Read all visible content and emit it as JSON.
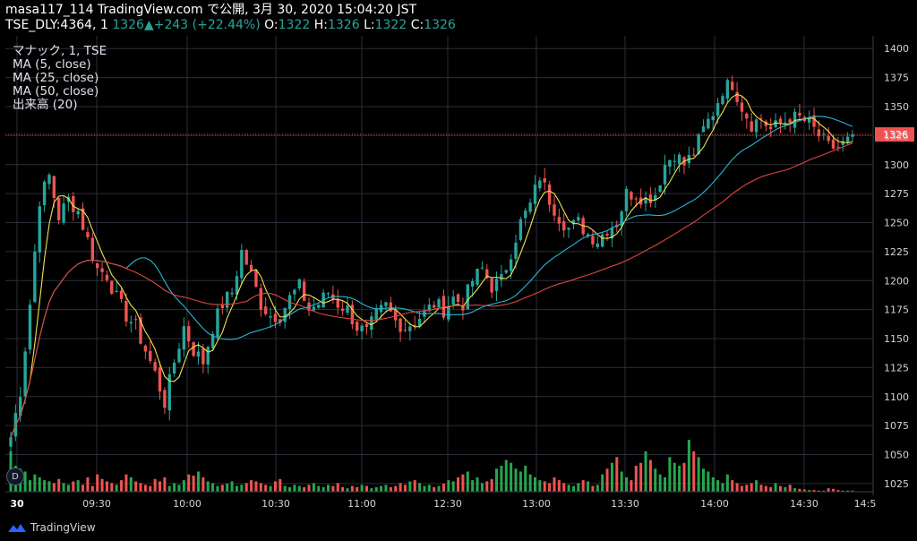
{
  "header": {
    "line1": "masa117_114 TradingView.com で公開, 3月 30, 2020 15:04:20 JST",
    "symbol_prefix": "TSE_DLY:4364, 1 ",
    "last": "1326",
    "arrow": "▲",
    "change": "+243 (+22.44%)",
    "o_label": "O:",
    "o": "1322",
    "h_label": "H:",
    "h": "1326",
    "l_label": "L:",
    "l": "1322",
    "c_label": "C:",
    "c": "1326"
  },
  "indicators": [
    "マナック, 1, TSE",
    "MA (5, close)",
    "MA (25, close)",
    "MA (50, close)",
    "出来高 (20)"
  ],
  "footer": {
    "brand": "TradingView"
  },
  "badge": "D",
  "colors": {
    "up": "#26a69a",
    "down": "#ef5350",
    "ma5": "#f2e24c",
    "ma25": "#29b6d6",
    "ma50": "#e0443e",
    "price_line": "#ef5350",
    "grid": "#2a2e39",
    "axis_text": "#d1d4dc",
    "vol_up": "#26a650",
    "vol_down": "#ef5350"
  },
  "chart_data": {
    "type": "candlestick",
    "y_ticks": [
      1025,
      1050,
      1075,
      1100,
      1125,
      1150,
      1175,
      1200,
      1225,
      1250,
      1275,
      1300,
      1325,
      1350,
      1375,
      1400
    ],
    "ylim": [
      1018,
      1411
    ],
    "x_ticks": [
      "30",
      "09:30",
      "10:00",
      "10:30",
      "11:00",
      "12:30",
      "13:00",
      "13:30",
      "14:00",
      "14:30",
      "14:5"
    ],
    "last_price": 1326,
    "anchors": [
      [
        0,
        1065
      ],
      [
        2,
        1105
      ],
      [
        4,
        1180
      ],
      [
        6,
        1270
      ],
      [
        8,
        1290
      ],
      [
        10,
        1255
      ],
      [
        12,
        1270
      ],
      [
        14,
        1260
      ],
      [
        16,
        1235
      ],
      [
        18,
        1210
      ],
      [
        20,
        1205
      ],
      [
        22,
        1185
      ],
      [
        24,
        1170
      ],
      [
        26,
        1160
      ],
      [
        28,
        1140
      ],
      [
        30,
        1120
      ],
      [
        32,
        1095
      ],
      [
        34,
        1130
      ],
      [
        36,
        1160
      ],
      [
        38,
        1140
      ],
      [
        40,
        1130
      ],
      [
        42,
        1160
      ],
      [
        44,
        1180
      ],
      [
        46,
        1190
      ],
      [
        48,
        1225
      ],
      [
        50,
        1205
      ],
      [
        52,
        1180
      ],
      [
        54,
        1170
      ],
      [
        56,
        1170
      ],
      [
        58,
        1185
      ],
      [
        60,
        1195
      ],
      [
        62,
        1175
      ],
      [
        64,
        1180
      ],
      [
        66,
        1190
      ],
      [
        68,
        1180
      ],
      [
        70,
        1175
      ],
      [
        72,
        1160
      ],
      [
        74,
        1155
      ],
      [
        76,
        1170
      ],
      [
        78,
        1178
      ],
      [
        80,
        1165
      ],
      [
        82,
        1160
      ],
      [
        84,
        1165
      ],
      [
        86,
        1172
      ],
      [
        88,
        1180
      ],
      [
        90,
        1175
      ],
      [
        92,
        1185
      ],
      [
        94,
        1180
      ],
      [
        96,
        1200
      ],
      [
        98,
        1210
      ],
      [
        100,
        1195
      ],
      [
        102,
        1200
      ],
      [
        104,
        1225
      ],
      [
        106,
        1250
      ],
      [
        108,
        1265
      ],
      [
        110,
        1290
      ],
      [
        112,
        1270
      ],
      [
        114,
        1255
      ],
      [
        116,
        1245
      ],
      [
        118,
        1250
      ],
      [
        120,
        1240
      ],
      [
        122,
        1235
      ],
      [
        124,
        1245
      ],
      [
        126,
        1250
      ],
      [
        128,
        1275
      ],
      [
        130,
        1275
      ],
      [
        132,
        1270
      ],
      [
        134,
        1275
      ],
      [
        136,
        1300
      ],
      [
        138,
        1310
      ],
      [
        140,
        1300
      ],
      [
        142,
        1310
      ],
      [
        144,
        1330
      ],
      [
        146,
        1345
      ],
      [
        148,
        1365
      ],
      [
        150,
        1370
      ],
      [
        152,
        1350
      ],
      [
        154,
        1335
      ],
      [
        156,
        1340
      ],
      [
        158,
        1330
      ],
      [
        160,
        1335
      ],
      [
        162,
        1340
      ],
      [
        164,
        1340
      ],
      [
        166,
        1335
      ],
      [
        168,
        1325
      ],
      [
        170,
        1315
      ],
      [
        172,
        1315
      ],
      [
        174,
        1320
      ],
      [
        175,
        1326
      ]
    ],
    "volume": [
      70,
      45,
      40,
      35,
      20,
      30,
      25,
      20,
      18,
      15,
      22,
      15,
      12,
      18,
      20,
      12,
      25,
      10,
      30,
      22,
      18,
      15,
      12,
      20,
      30,
      25,
      18,
      15,
      12,
      10,
      22,
      18,
      25,
      10,
      15,
      12,
      20,
      30,
      28,
      35,
      25,
      18,
      15,
      10,
      12,
      14,
      18,
      10,
      12,
      15,
      20,
      18,
      15,
      12,
      10,
      18,
      22,
      10,
      8,
      12,
      10,
      8,
      12,
      15,
      10,
      8,
      12,
      10,
      15,
      8,
      6,
      10,
      8,
      12,
      10,
      6,
      8,
      10,
      12,
      8,
      10,
      15,
      12,
      18,
      20,
      15,
      10,
      12,
      8,
      10,
      14,
      20,
      18,
      25,
      30,
      35,
      20,
      25,
      15,
      18,
      22,
      40,
      45,
      55,
      50,
      40,
      35,
      45,
      30,
      25,
      20,
      18,
      15,
      25,
      20,
      15,
      12,
      10,
      15,
      20,
      18,
      10,
      12,
      30,
      40,
      50,
      60,
      35,
      25,
      20,
      45,
      50,
      70,
      55,
      40,
      30,
      25,
      60,
      50,
      45,
      50,
      90,
      70,
      60,
      40,
      35,
      25,
      20,
      15,
      30,
      20,
      15,
      10,
      12,
      15,
      20,
      12,
      10,
      8,
      15,
      10,
      8,
      12,
      6,
      5,
      4,
      3,
      3,
      2,
      2,
      6,
      5,
      3,
      2,
      2,
      2
    ]
  }
}
